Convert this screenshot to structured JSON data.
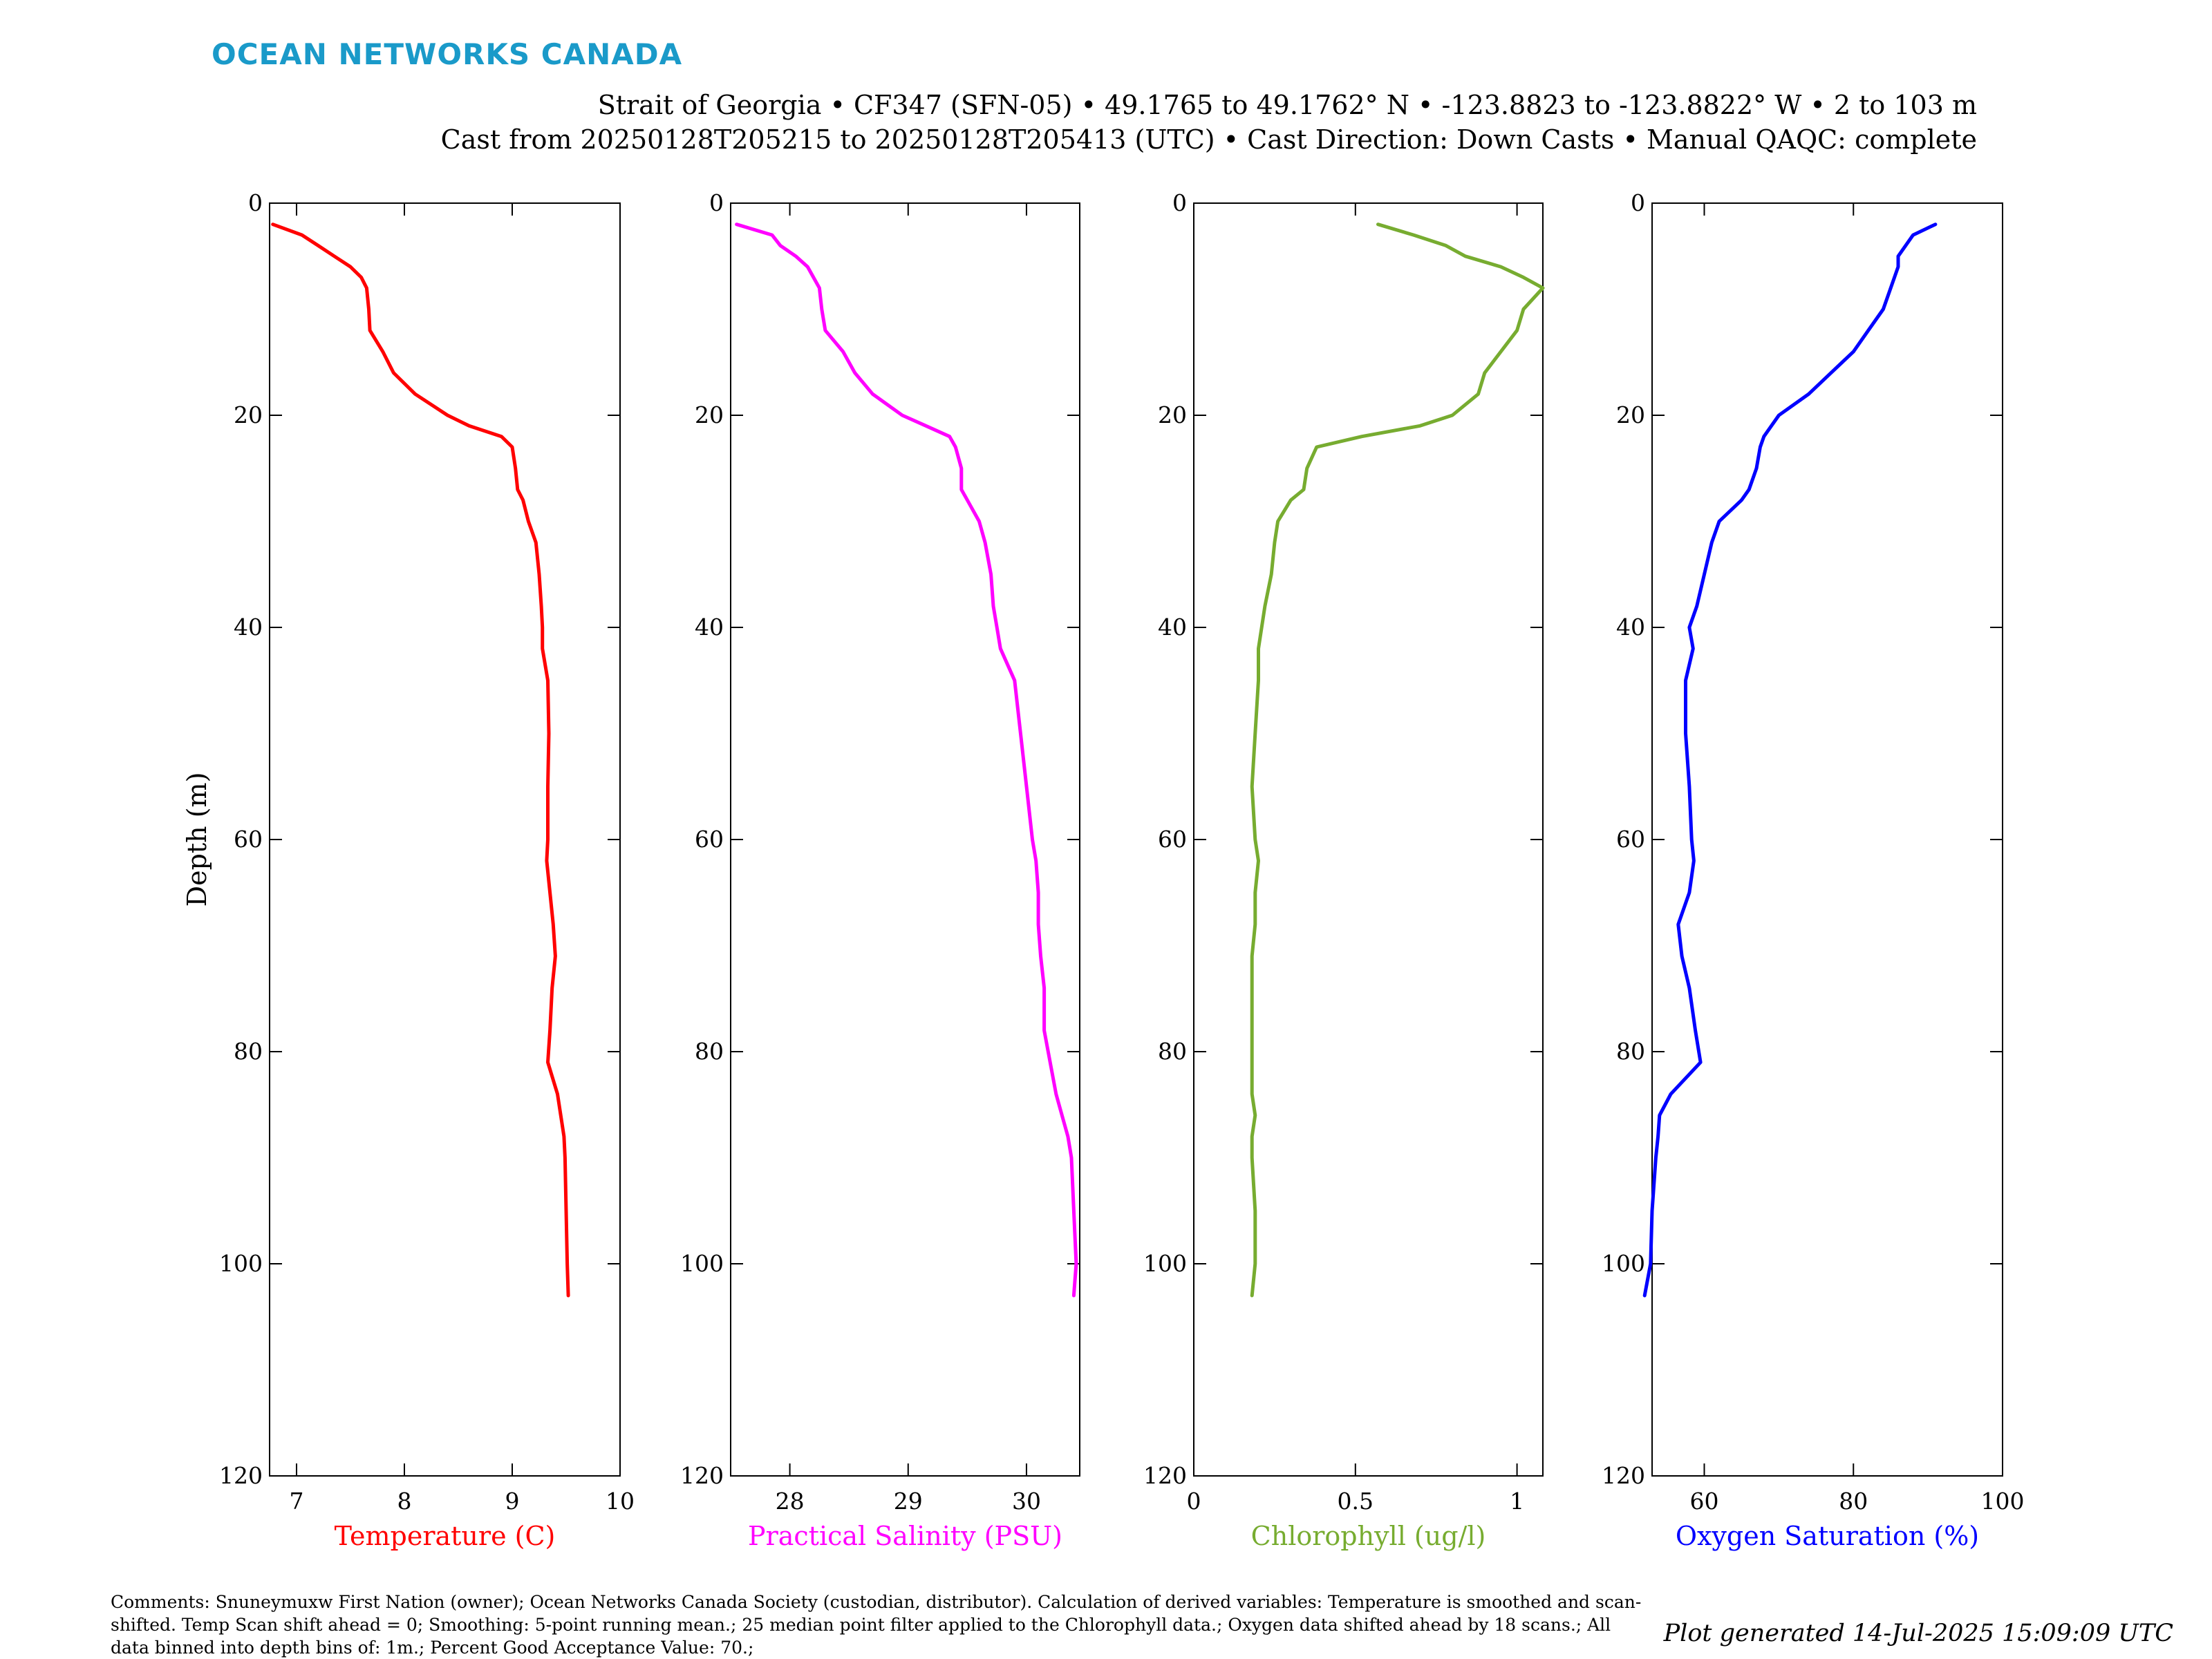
{
  "brand": "OCEAN NETWORKS CANADA",
  "header": {
    "line1": "Strait of Georgia • CF347 (SFN-05) • 49.1765 to 49.1762° N • -123.8823 to -123.8822° W • 2 to 103 m",
    "line2": "Cast from 20250128T205215 to 20250128T205413 (UTC) • Cast Direction: Down Casts • Manual QAQC: complete"
  },
  "comments": "Comments: Snuneymuxw First Nation (owner); Ocean Networks Canada Society (custodian, distributor). Calculation of derived variables: Temperature is smoothed and scan-shifted. Temp Scan shift ahead = 0; Smoothing: 5-point running mean.; 25 median point filter applied to the Chlorophyll data.; Oxygen data shifted ahead by 18 scans.; All data binned into depth bins of: 1m.; Percent Good Acceptance Value: 70.;",
  "generated": "Plot generated 14-Jul-2025 15:09:09 UTC",
  "chart_data": {
    "type": "line",
    "ylabel": "Depth (m)",
    "ylim": [
      0,
      120
    ],
    "y_reversed": true,
    "yticks": [
      0,
      20,
      40,
      60,
      80,
      100,
      120
    ],
    "depth": [
      2,
      3,
      4,
      5,
      6,
      7,
      8,
      10,
      12,
      14,
      16,
      18,
      20,
      21,
      22,
      23,
      25,
      27,
      28,
      30,
      32,
      35,
      38,
      40,
      42,
      45,
      50,
      55,
      60,
      62,
      65,
      68,
      71,
      74,
      78,
      81,
      84,
      86,
      88,
      90,
      95,
      100,
      103
    ],
    "panels": [
      {
        "xlabel": "Temperature (C)",
        "color": "#ff0000",
        "xlim": [
          6.75,
          10
        ],
        "xticks": [
          7,
          8,
          9,
          10
        ],
        "values": [
          6.78,
          7.05,
          7.2,
          7.35,
          7.5,
          7.6,
          7.65,
          7.67,
          7.68,
          7.8,
          7.9,
          8.1,
          8.4,
          8.6,
          8.9,
          9.0,
          9.03,
          9.05,
          9.1,
          9.15,
          9.22,
          9.25,
          9.27,
          9.28,
          9.28,
          9.33,
          9.34,
          9.33,
          9.33,
          9.32,
          9.35,
          9.38,
          9.4,
          9.37,
          9.35,
          9.33,
          9.42,
          9.45,
          9.48,
          9.49,
          9.5,
          9.51,
          9.52
        ]
      },
      {
        "xlabel": "Practical Salinity (PSU)",
        "color": "#ff00ff",
        "xlim": [
          27.5,
          30.45
        ],
        "xticks": [
          28,
          29,
          30
        ],
        "values": [
          27.55,
          27.85,
          27.92,
          28.05,
          28.15,
          28.2,
          28.25,
          28.27,
          28.3,
          28.45,
          28.55,
          28.7,
          28.95,
          29.15,
          29.35,
          29.4,
          29.45,
          29.45,
          29.5,
          29.6,
          29.65,
          29.7,
          29.72,
          29.75,
          29.78,
          29.9,
          29.95,
          30.0,
          30.05,
          30.08,
          30.1,
          30.1,
          30.12,
          30.15,
          30.15,
          30.2,
          30.25,
          30.3,
          30.35,
          30.38,
          30.4,
          30.42,
          30.4
        ]
      },
      {
        "xlabel": "Chlorophyll (ug/l)",
        "color": "#77ac30",
        "xlim": [
          0,
          1.08
        ],
        "xticks": [
          0,
          0.5,
          1
        ],
        "values": [
          0.57,
          0.68,
          0.78,
          0.84,
          0.95,
          1.02,
          1.08,
          1.02,
          1.0,
          0.95,
          0.9,
          0.88,
          0.8,
          0.7,
          0.52,
          0.38,
          0.35,
          0.34,
          0.3,
          0.26,
          0.25,
          0.24,
          0.22,
          0.21,
          0.2,
          0.2,
          0.19,
          0.18,
          0.19,
          0.2,
          0.19,
          0.19,
          0.18,
          0.18,
          0.18,
          0.18,
          0.18,
          0.19,
          0.18,
          0.18,
          0.19,
          0.19,
          0.18
        ]
      },
      {
        "xlabel": "Oxygen Saturation (%)",
        "color": "#0000ff",
        "xlim": [
          53,
          100
        ],
        "xticks": [
          60,
          80,
          100
        ],
        "values": [
          91,
          88,
          87,
          86,
          86,
          85.5,
          85,
          84,
          82,
          80,
          77,
          74,
          70,
          69,
          68,
          67.5,
          67,
          66,
          65,
          62,
          61,
          60,
          59,
          58,
          58.5,
          57.5,
          57.5,
          58,
          58.3,
          58.6,
          58,
          56.5,
          57,
          58,
          58.8,
          59.5,
          55.5,
          54,
          53.8,
          53.5,
          53,
          52.8,
          52
        ]
      }
    ]
  }
}
